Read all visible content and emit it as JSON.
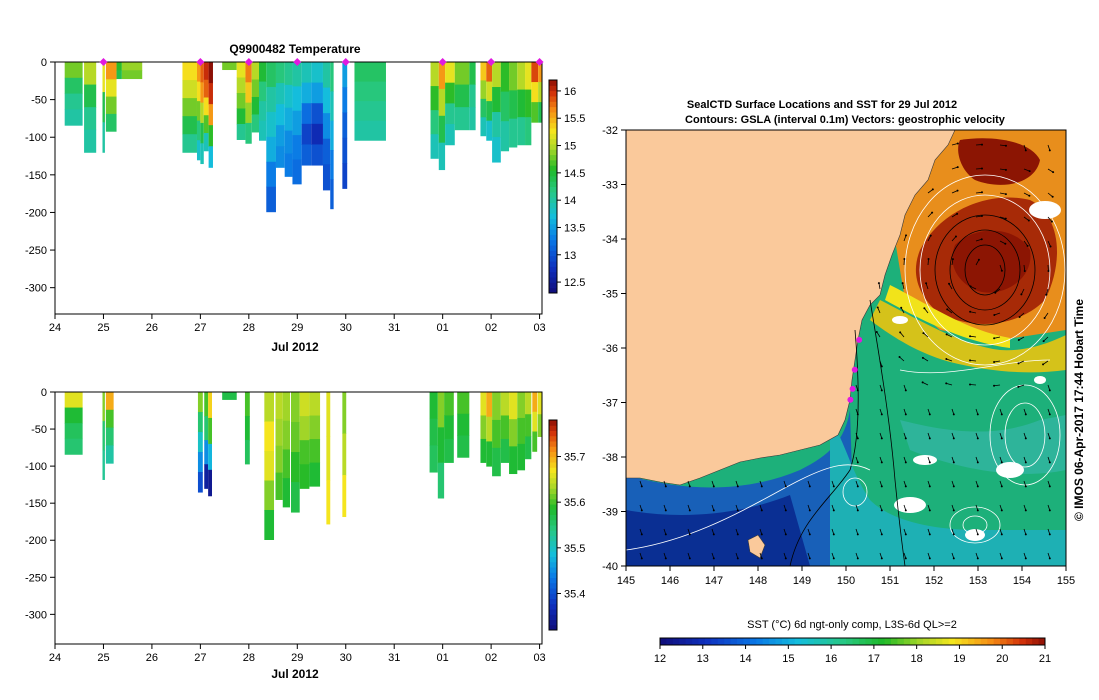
{
  "chart_data": [
    {
      "type": "heatmap",
      "id": "temperature-section",
      "title": "Q9900482  Temperature",
      "xlabel": "Jul 2012",
      "ylabel": "",
      "x_ticks": [
        "24",
        "25",
        "26",
        "27",
        "28",
        "29",
        "30",
        "31",
        "01",
        "02",
        "03"
      ],
      "x_range": [
        24,
        34.05
      ],
      "y_ticks": [
        0,
        -50,
        -100,
        -150,
        -200,
        -250,
        -300
      ],
      "y_range": [
        -335,
        0
      ],
      "colorbar": {
        "min": 12.3,
        "max": 16.2,
        "ticks": [
          "12.5",
          "13",
          "13.5",
          "14",
          "14.5",
          "15",
          "15.5",
          "16"
        ],
        "tick_values": [
          12.5,
          13,
          13.5,
          14,
          14.5,
          15,
          15.5,
          16
        ]
      },
      "profile_markers_day": [
        25,
        27,
        28,
        29,
        30,
        32,
        33,
        34
      ],
      "profiles": [
        {
          "t": 24.2,
          "w": 0.37,
          "d": -84,
          "v": [
            14.8,
            14.3,
            14.1,
            14.0
          ]
        },
        {
          "t": 24.6,
          "w": 0.25,
          "d": -120,
          "v": [
            15.0,
            14.4,
            14.1,
            14.0
          ]
        },
        {
          "t": 24.98,
          "w": 0.05,
          "d": -120,
          "v": [
            15.2,
            14.4,
            14.0
          ]
        },
        {
          "t": 25.05,
          "w": 0.22,
          "d": -92,
          "v": [
            15.6,
            15.2,
            14.8,
            14.3
          ]
        },
        {
          "t": 25.27,
          "w": 0.11,
          "d": -22,
          "v": [
            14.6,
            14.4
          ]
        },
        {
          "t": 25.38,
          "w": 0.42,
          "d": -22,
          "v": [
            14.9,
            14.8
          ]
        },
        {
          "t": 26.63,
          "w": 0.3,
          "d": -120,
          "v": [
            15.3,
            15.1,
            14.8,
            14.4,
            14.1
          ]
        },
        {
          "t": 26.93,
          "w": 0.07,
          "d": -130,
          "v": [
            15.6,
            15.3,
            14.8,
            14.2,
            13.8
          ]
        },
        {
          "t": 27.0,
          "w": 0.07,
          "d": -135,
          "v": [
            15.8,
            15.6,
            15.0,
            14.4,
            13.9
          ]
        },
        {
          "t": 27.07,
          "w": 0.1,
          "d": -118,
          "v": [
            16.0,
            15.8,
            15.3,
            14.7,
            13.9
          ]
        },
        {
          "t": 27.17,
          "w": 0.09,
          "d": -140,
          "v": [
            16.2,
            16.0,
            15.6,
            14.6,
            13.7
          ]
        },
        {
          "t": 27.45,
          "w": 0.3,
          "d": -10,
          "v": [
            14.8
          ]
        },
        {
          "t": 27.75,
          "w": 0.18,
          "d": -103,
          "v": [
            15.2,
            15.0,
            14.8,
            14.5,
            14.1
          ]
        },
        {
          "t": 27.93,
          "w": 0.13,
          "d": -108,
          "v": [
            15.7,
            15.4,
            14.9,
            14.2
          ]
        },
        {
          "t": 28.06,
          "w": 0.15,
          "d": -93,
          "v": [
            15.0,
            14.8,
            14.5,
            14.2
          ]
        },
        {
          "t": 28.21,
          "w": 0.15,
          "d": -104,
          "v": [
            14.5,
            14.2,
            14.0,
            13.9
          ]
        },
        {
          "t": 28.36,
          "w": 0.2,
          "d": -199,
          "v": [
            14.3,
            14.0,
            13.8,
            13.6,
            13.3,
            13.1
          ]
        },
        {
          "t": 28.56,
          "w": 0.18,
          "d": -140,
          "v": [
            14.2,
            13.9,
            13.7,
            13.5,
            13.4
          ]
        },
        {
          "t": 28.74,
          "w": 0.16,
          "d": -152,
          "v": [
            14.1,
            13.8,
            13.6,
            13.4,
            13.3
          ]
        },
        {
          "t": 28.9,
          "w": 0.19,
          "d": -162,
          "v": [
            14.0,
            13.7,
            13.5,
            13.3,
            13.2
          ]
        },
        {
          "t": 29.09,
          "w": 0.2,
          "d": -137,
          "v": [
            13.9,
            13.6,
            13.2,
            12.9,
            13.1
          ]
        },
        {
          "t": 29.29,
          "w": 0.24,
          "d": -137,
          "v": [
            13.8,
            13.5,
            13.0,
            12.7,
            13.0
          ]
        },
        {
          "t": 29.53,
          "w": 0.15,
          "d": -170,
          "v": [
            14.0,
            13.7,
            13.4,
            13.1,
            13.0
          ]
        },
        {
          "t": 29.68,
          "w": 0.07,
          "d": -195,
          "v": [
            14.2,
            13.9,
            13.6,
            13.3,
            13.1
          ]
        },
        {
          "t": 29.93,
          "w": 0.1,
          "d": -168,
          "v": [
            13.5,
            13.3,
            13.1,
            13.0,
            12.9
          ]
        },
        {
          "t": 30.18,
          "w": 0.65,
          "d": -104,
          "v": [
            14.3,
            14.2,
            14.1,
            14.0
          ]
        },
        {
          "t": 31.75,
          "w": 0.17,
          "d": -128,
          "v": [
            15.0,
            14.6,
            14.2,
            13.9
          ]
        },
        {
          "t": 31.92,
          "w": 0.13,
          "d": -143,
          "v": [
            15.6,
            15.0,
            14.4,
            13.9
          ]
        },
        {
          "t": 32.05,
          "w": 0.2,
          "d": -110,
          "v": [
            15.2,
            14.6,
            14.1,
            13.9
          ]
        },
        {
          "t": 32.25,
          "w": 0.3,
          "d": -90,
          "v": [
            14.8,
            14.4,
            14.1
          ]
        },
        {
          "t": 32.55,
          "w": 0.13,
          "d": -90,
          "v": [
            14.4,
            14.1,
            14.0
          ]
        },
        {
          "t": 32.78,
          "w": 0.12,
          "d": -98,
          "v": [
            15.4,
            14.9,
            14.3,
            13.9
          ]
        },
        {
          "t": 32.9,
          "w": 0.12,
          "d": -104,
          "v": [
            15.8,
            15.1,
            14.4,
            13.8
          ]
        },
        {
          "t": 33.02,
          "w": 0.18,
          "d": -133,
          "v": [
            15.0,
            14.5,
            14.0,
            13.8
          ]
        },
        {
          "t": 33.2,
          "w": 0.17,
          "d": -118,
          "v": [
            14.6,
            14.3,
            14.0
          ]
        },
        {
          "t": 33.37,
          "w": 0.17,
          "d": -113,
          "v": [
            14.8,
            14.4,
            14.1
          ]
        },
        {
          "t": 33.54,
          "w": 0.16,
          "d": -110,
          "v": [
            15.0,
            14.5,
            14.1
          ]
        },
        {
          "t": 33.7,
          "w": 0.13,
          "d": -110,
          "v": [
            15.2,
            14.6,
            14.2
          ]
        },
        {
          "t": 33.83,
          "w": 0.14,
          "d": -80,
          "v": [
            15.9,
            15.3,
            14.7
          ]
        },
        {
          "t": 33.97,
          "w": 0.09,
          "d": -80,
          "v": [
            15.6,
            15.0,
            14.4
          ]
        }
      ]
    },
    {
      "type": "heatmap",
      "id": "salinity-section",
      "title": "",
      "xlabel": "Jul 2012",
      "ylabel": "",
      "x_ticks": [
        "24",
        "25",
        "26",
        "27",
        "28",
        "29",
        "30",
        "31",
        "01",
        "02",
        "03"
      ],
      "x_range": [
        24,
        34.05
      ],
      "y_ticks": [
        0,
        -50,
        -100,
        -150,
        -200,
        -250,
        -300
      ],
      "y_range": [
        -340,
        0
      ],
      "colorbar": {
        "min": 35.32,
        "max": 35.78,
        "ticks": [
          "35.4",
          "35.5",
          "35.6",
          "35.7"
        ],
        "tick_values": [
          35.4,
          35.5,
          35.6,
          35.7
        ]
      },
      "profiles": [
        {
          "t": 24.2,
          "w": 0.37,
          "d": -84,
          "v": [
            35.66,
            35.58,
            35.56,
            35.55
          ]
        },
        {
          "t": 24.98,
          "w": 0.05,
          "d": -118,
          "v": [
            35.62,
            35.55,
            35.53
          ]
        },
        {
          "t": 25.05,
          "w": 0.16,
          "d": -96,
          "v": [
            35.7,
            35.6,
            35.55,
            35.52
          ]
        },
        {
          "t": 26.95,
          "w": 0.1,
          "d": -135,
          "v": [
            35.62,
            35.55,
            35.5,
            35.45,
            35.4
          ]
        },
        {
          "t": 27.08,
          "w": 0.08,
          "d": -130,
          "v": [
            35.6,
            35.55,
            35.45,
            35.35
          ]
        },
        {
          "t": 27.16,
          "w": 0.08,
          "d": -140,
          "v": [
            35.68,
            35.6,
            35.48,
            35.34
          ]
        },
        {
          "t": 27.45,
          "w": 0.3,
          "d": -10,
          "v": [
            35.57
          ]
        },
        {
          "t": 27.92,
          "w": 0.1,
          "d": -97,
          "v": [
            35.6,
            35.58,
            35.56
          ]
        },
        {
          "t": 28.32,
          "w": 0.2,
          "d": -199,
          "v": [
            35.64,
            35.67,
            35.66,
            35.62,
            35.58
          ]
        },
        {
          "t": 28.55,
          "w": 0.15,
          "d": -145,
          "v": [
            35.64,
            35.63,
            35.62,
            35.6
          ]
        },
        {
          "t": 28.7,
          "w": 0.15,
          "d": -155,
          "v": [
            35.63,
            35.62,
            35.6,
            35.58
          ]
        },
        {
          "t": 28.87,
          "w": 0.18,
          "d": -162,
          "v": [
            35.62,
            35.61,
            35.59,
            35.57
          ]
        },
        {
          "t": 29.05,
          "w": 0.2,
          "d": -130,
          "v": [
            35.65,
            35.63,
            35.6,
            35.59
          ]
        },
        {
          "t": 29.25,
          "w": 0.22,
          "d": -127,
          "v": [
            35.64,
            35.62,
            35.6,
            35.58
          ]
        },
        {
          "t": 29.6,
          "w": 0.08,
          "d": -178,
          "v": [
            35.66,
            35.66,
            35.67
          ]
        },
        {
          "t": 29.93,
          "w": 0.08,
          "d": -168,
          "v": [
            35.62,
            35.64,
            35.67
          ]
        },
        {
          "t": 31.73,
          "w": 0.17,
          "d": -108,
          "v": [
            35.58,
            35.57,
            35.56
          ]
        },
        {
          "t": 31.9,
          "w": 0.13,
          "d": -143,
          "v": [
            35.62,
            35.58,
            35.55
          ]
        },
        {
          "t": 32.03,
          "w": 0.2,
          "d": -95,
          "v": [
            35.6,
            35.58,
            35.57
          ]
        },
        {
          "t": 32.3,
          "w": 0.25,
          "d": -88,
          "v": [
            35.6,
            35.58,
            35.57
          ]
        },
        {
          "t": 32.78,
          "w": 0.12,
          "d": -95,
          "v": [
            35.66,
            35.62,
            35.58
          ]
        },
        {
          "t": 32.9,
          "w": 0.12,
          "d": -100,
          "v": [
            35.7,
            35.64,
            35.58
          ]
        },
        {
          "t": 33.02,
          "w": 0.18,
          "d": -113,
          "v": [
            35.62,
            35.6,
            35.57
          ]
        },
        {
          "t": 33.2,
          "w": 0.17,
          "d": -95,
          "v": [
            35.64,
            35.6,
            35.57
          ]
        },
        {
          "t": 33.37,
          "w": 0.17,
          "d": -110,
          "v": [
            35.66,
            35.62,
            35.58
          ]
        },
        {
          "t": 33.54,
          "w": 0.16,
          "d": -105,
          "v": [
            35.62,
            35.6,
            35.58
          ]
        },
        {
          "t": 33.7,
          "w": 0.13,
          "d": -90,
          "v": [
            35.64,
            35.6,
            35.57
          ]
        },
        {
          "t": 33.85,
          "w": 0.1,
          "d": -80,
          "v": [
            35.7,
            35.66,
            35.6
          ]
        },
        {
          "t": 33.96,
          "w": 0.08,
          "d": -60,
          "v": [
            35.66,
            35.62
          ]
        }
      ]
    },
    {
      "type": "heatmap",
      "id": "sst-map",
      "title": "SealCTD Surface Locations and SST for 29 Jul 2012",
      "subtitle": "Contours: GSLA (interval 0.1m) Vectors: geostrophic velocity",
      "xlabel": "",
      "ylabel": "",
      "x_ticks": [
        "145",
        "146",
        "147",
        "148",
        "149",
        "150",
        "151",
        "152",
        "153",
        "154",
        "155"
      ],
      "x_range": [
        145,
        155
      ],
      "y_ticks": [
        "-32",
        "-33",
        "-34",
        "-35",
        "-36",
        "-37",
        "-38",
        "-39",
        "-40"
      ],
      "y_range": [
        -40,
        -32
      ],
      "colorbar_label": "SST (°C) 6d ngt-only comp, L3S-6d QL>=2",
      "colorbar": {
        "min": 12,
        "max": 21,
        "ticks": [
          "12",
          "13",
          "14",
          "15",
          "16",
          "17",
          "18",
          "19",
          "20",
          "21"
        ],
        "tick_values": [
          12,
          13,
          14,
          15,
          16,
          17,
          18,
          19,
          20,
          21
        ]
      },
      "sidebar_credit": "© IMOS 06-Apr-2017 17:44 Hobart Time",
      "seal_positions": [
        {
          "lon": 150.3,
          "lat": -35.85
        },
        {
          "lon": 150.2,
          "lat": -36.4
        },
        {
          "lon": 150.15,
          "lat": -36.75
        },
        {
          "lon": 150.1,
          "lat": -36.95
        }
      ]
    }
  ]
}
